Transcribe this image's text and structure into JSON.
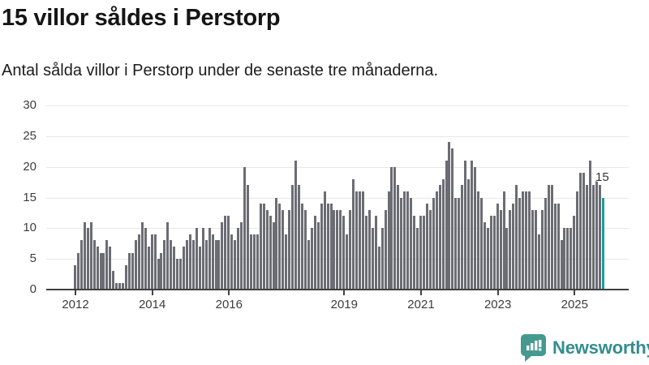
{
  "title": "15 villor såldes i Perstorp",
  "subtitle": "Antal sålda villor i Perstorp under de senaste tre månaderna.",
  "footer": {
    "brand": "Newsworthy"
  },
  "colors": {
    "bar": "#6c6c74",
    "highlight": "#1e9da1",
    "grid": "#e7e7e7",
    "axis": "#414141",
    "logo_icon": "#459a90",
    "logo_text": "#338d8d"
  },
  "chart_data": {
    "type": "bar",
    "title": "15 villor såldes i Perstorp",
    "subtitle": "Antal sålda villor i Perstorp under de senaste tre månaderna.",
    "ylabel": "",
    "xlabel": "",
    "ylim": [
      0,
      30
    ],
    "grid": true,
    "y_ticks": [
      0,
      5,
      10,
      15,
      20,
      25,
      30
    ],
    "x_tick_labels": [
      "2012",
      "2014",
      "2016",
      "2019",
      "2021",
      "2023",
      "2025"
    ],
    "x_tick_indices": [
      0,
      24,
      48,
      84,
      108,
      132,
      156
    ],
    "values": [
      4,
      6,
      8,
      11,
      10,
      11,
      8,
      7,
      6,
      6,
      8,
      7,
      3,
      1,
      1,
      1,
      4,
      6,
      6,
      8,
      9,
      11,
      10,
      7,
      9,
      9,
      5,
      6,
      8,
      11,
      8,
      7,
      5,
      5,
      7,
      8,
      9,
      8,
      10,
      7,
      10,
      8,
      10,
      9,
      8,
      8,
      11,
      12,
      12,
      9,
      8,
      10,
      11,
      20,
      17,
      9,
      9,
      9,
      14,
      14,
      13,
      12,
      11,
      15,
      14,
      13,
      9,
      13,
      17,
      21,
      17,
      14,
      13,
      8,
      10,
      12,
      11,
      14,
      16,
      14,
      14,
      13,
      13,
      13,
      12,
      9,
      13,
      18,
      16,
      16,
      16,
      12,
      13,
      10,
      12,
      7,
      10,
      13,
      16,
      20,
      20,
      17,
      15,
      16,
      16,
      15,
      12,
      10,
      12,
      12,
      14,
      13,
      15,
      16,
      17,
      18,
      21,
      24,
      23,
      15,
      15,
      17,
      21,
      18,
      21,
      20,
      16,
      15,
      11,
      10,
      12,
      12,
      14,
      13,
      16,
      10,
      13,
      14,
      17,
      15,
      16,
      16,
      16,
      13,
      13,
      9,
      13,
      15,
      17,
      17,
      14,
      14,
      8,
      10,
      10,
      10,
      12,
      16,
      19,
      19,
      17,
      21,
      17,
      18,
      17,
      15
    ],
    "highlight": {
      "index": 165,
      "value": 15,
      "label": "15"
    }
  }
}
